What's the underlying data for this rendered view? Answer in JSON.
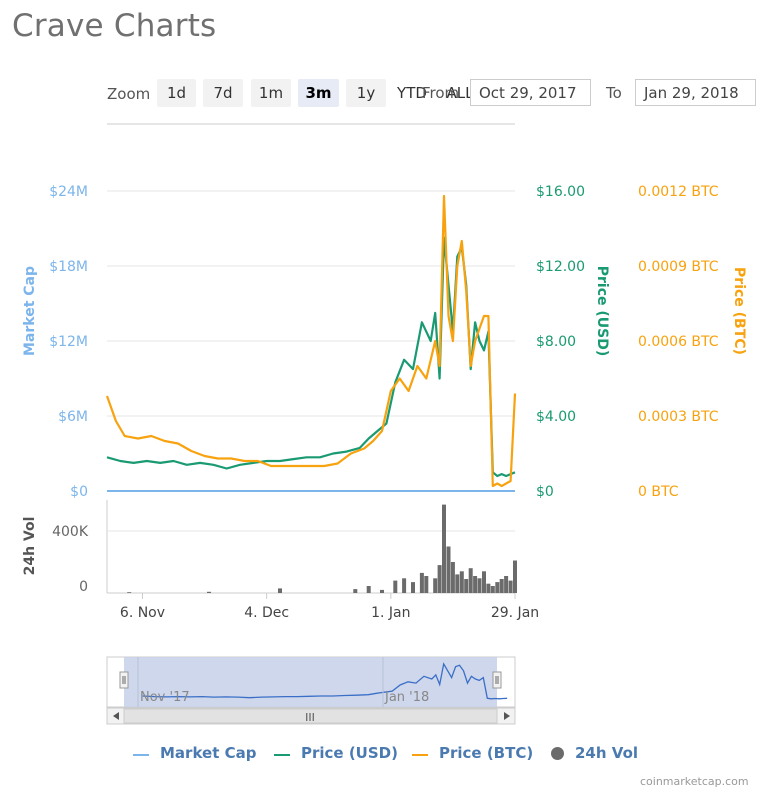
{
  "title": "Crave Charts",
  "zoom": {
    "label": "Zoom",
    "buttons": [
      {
        "label": "1d",
        "active": false
      },
      {
        "label": "7d",
        "active": false
      },
      {
        "label": "1m",
        "active": false
      },
      {
        "label": "3m",
        "active": true
      },
      {
        "label": "1y",
        "active": false
      },
      {
        "label": "YTD",
        "active": false
      },
      {
        "label": "ALL",
        "active": false
      }
    ]
  },
  "range": {
    "from_label": "From",
    "from_value": "Oct 29, 2017",
    "to_label": "To",
    "to_value": "Jan 29, 2018"
  },
  "colors": {
    "market_cap": "#7cb5ec",
    "price_usd": "#1a9a72",
    "price_btc": "#f7a20e",
    "volume": "#6b6b6b",
    "navigator_fill": "#c9d3ea",
    "legend_text": "#4a7ab0"
  },
  "legend": [
    {
      "label": "Market Cap",
      "color": "#7cb5ec",
      "kind": "line"
    },
    {
      "label": "Price (USD)",
      "color": "#1a9a72",
      "kind": "line"
    },
    {
      "label": "Price (BTC)",
      "color": "#f7a20e",
      "kind": "line"
    },
    {
      "label": "24h Vol",
      "color": "#6b6b6b",
      "kind": "dot"
    }
  ],
  "credits": "coinmarketcap.com",
  "chart_data": {
    "type": "line",
    "x_range": [
      "2017-10-29",
      "2018-01-29"
    ],
    "x_ticks": [
      "6. Nov",
      "4. Dec",
      "1. Jan",
      "29. Jan"
    ],
    "y_axes": {
      "market_cap": {
        "label": "Market Cap",
        "ticks": [
          "$0",
          "$6M",
          "$12M",
          "$18M",
          "$24M"
        ],
        "range": [
          0,
          24000000
        ]
      },
      "price_usd": {
        "label": "Price (USD)",
        "ticks": [
          "$0",
          "$4.00",
          "$8.00",
          "$12.00",
          "$16.00"
        ],
        "range": [
          0,
          16
        ]
      },
      "price_btc": {
        "label": "Price (BTC)",
        "ticks": [
          "0 BTC",
          "0.0003 BTC",
          "0.0006 BTC",
          "0.0009 BTC",
          "0.0012 BTC"
        ],
        "range": [
          0,
          0.0012
        ]
      },
      "volume": {
        "label": "24h Vol",
        "ticks": [
          "0",
          "400K"
        ],
        "range": [
          0,
          600000
        ]
      }
    },
    "series": [
      {
        "name": "Price (USD)",
        "x": [
          "2017-10-29",
          "2017-11-01",
          "2017-11-04",
          "2017-11-07",
          "2017-11-10",
          "2017-11-13",
          "2017-11-16",
          "2017-11-19",
          "2017-11-22",
          "2017-11-25",
          "2017-11-28",
          "2017-12-01",
          "2017-12-04",
          "2017-12-07",
          "2017-12-10",
          "2017-12-13",
          "2017-12-16",
          "2017-12-19",
          "2017-12-22",
          "2017-12-25",
          "2017-12-27",
          "2017-12-29",
          "2017-12-31",
          "2018-01-02",
          "2018-01-04",
          "2018-01-06",
          "2018-01-08",
          "2018-01-10",
          "2018-01-11",
          "2018-01-12",
          "2018-01-13",
          "2018-01-14",
          "2018-01-15",
          "2018-01-16",
          "2018-01-17",
          "2018-01-18",
          "2018-01-19",
          "2018-01-20",
          "2018-01-21",
          "2018-01-22",
          "2018-01-23",
          "2018-01-24",
          "2018-01-25",
          "2018-01-26",
          "2018-01-27",
          "2018-01-28",
          "2018-01-29"
        ],
        "values": [
          1.8,
          1.6,
          1.5,
          1.6,
          1.5,
          1.6,
          1.4,
          1.5,
          1.4,
          1.2,
          1.4,
          1.5,
          1.6,
          1.6,
          1.7,
          1.8,
          1.8,
          2.0,
          2.1,
          2.3,
          2.8,
          3.2,
          3.6,
          5.8,
          7.0,
          6.5,
          9.0,
          8.0,
          9.5,
          6.0,
          13.5,
          11.0,
          8.5,
          12.5,
          13.0,
          11.0,
          6.5,
          9.0,
          8.0,
          7.5,
          8.5,
          1.0,
          0.8,
          0.9,
          0.8,
          0.9,
          1.0
        ]
      },
      {
        "name": "Price (BTC)",
        "x": [
          "2017-10-29",
          "2017-10-31",
          "2017-11-02",
          "2017-11-05",
          "2017-11-08",
          "2017-11-11",
          "2017-11-14",
          "2017-11-17",
          "2017-11-20",
          "2017-11-23",
          "2017-11-26",
          "2017-11-29",
          "2017-12-02",
          "2017-12-05",
          "2017-12-08",
          "2017-12-11",
          "2017-12-14",
          "2017-12-17",
          "2017-12-20",
          "2017-12-23",
          "2017-12-26",
          "2017-12-28",
          "2017-12-30",
          "2018-01-01",
          "2018-01-03",
          "2018-01-05",
          "2018-01-07",
          "2018-01-09",
          "2018-01-11",
          "2018-01-12",
          "2018-01-13",
          "2018-01-14",
          "2018-01-15",
          "2018-01-16",
          "2018-01-17",
          "2018-01-18",
          "2018-01-19",
          "2018-01-20",
          "2018-01-21",
          "2018-01-22",
          "2018-01-23",
          "2018-01-24",
          "2018-01-25",
          "2018-01-26",
          "2018-01-27",
          "2018-01-28",
          "2018-01-29"
        ],
        "values": [
          0.00038,
          0.00028,
          0.00022,
          0.00021,
          0.00022,
          0.0002,
          0.00019,
          0.00016,
          0.00014,
          0.00013,
          0.00013,
          0.00012,
          0.00012,
          0.0001,
          0.0001,
          0.0001,
          0.0001,
          0.0001,
          0.00011,
          0.00015,
          0.00017,
          0.0002,
          0.00024,
          0.0004,
          0.00045,
          0.0004,
          0.0005,
          0.00045,
          0.0006,
          0.0005,
          0.00118,
          0.0007,
          0.0006,
          0.0009,
          0.001,
          0.0008,
          0.0005,
          0.0006,
          0.00065,
          0.0007,
          0.0007,
          2e-05,
          3e-05,
          2e-05,
          3e-05,
          4e-05,
          0.00039
        ]
      },
      {
        "name": "Market Cap",
        "x": [
          "2017-10-29",
          "2018-01-28",
          "2018-01-29"
        ],
        "values": [
          0,
          0,
          0
        ]
      },
      {
        "name": "24h Vol",
        "x": [
          "2017-11-03",
          "2017-11-21",
          "2017-12-07",
          "2017-12-24",
          "2017-12-27",
          "2017-12-30",
          "2018-01-02",
          "2018-01-04",
          "2018-01-06",
          "2018-01-08",
          "2018-01-09",
          "2018-01-11",
          "2018-01-12",
          "2018-01-13",
          "2018-01-14",
          "2018-01-15",
          "2018-01-16",
          "2018-01-17",
          "2018-01-18",
          "2018-01-19",
          "2018-01-20",
          "2018-01-21",
          "2018-01-22",
          "2018-01-23",
          "2018-01-24",
          "2018-01-25",
          "2018-01-26",
          "2018-01-27",
          "2018-01-28",
          "2018-01-29"
        ],
        "values": [
          5000,
          8000,
          30000,
          25000,
          45000,
          20000,
          80000,
          95000,
          70000,
          130000,
          110000,
          95000,
          180000,
          570000,
          300000,
          200000,
          120000,
          140000,
          90000,
          160000,
          110000,
          95000,
          140000,
          60000,
          45000,
          70000,
          90000,
          110000,
          80000,
          210000
        ]
      }
    ],
    "navigator": {
      "x_labels": [
        "Nov '17",
        "Jan '18"
      ]
    },
    "grid": true,
    "legend_position": "bottom"
  }
}
